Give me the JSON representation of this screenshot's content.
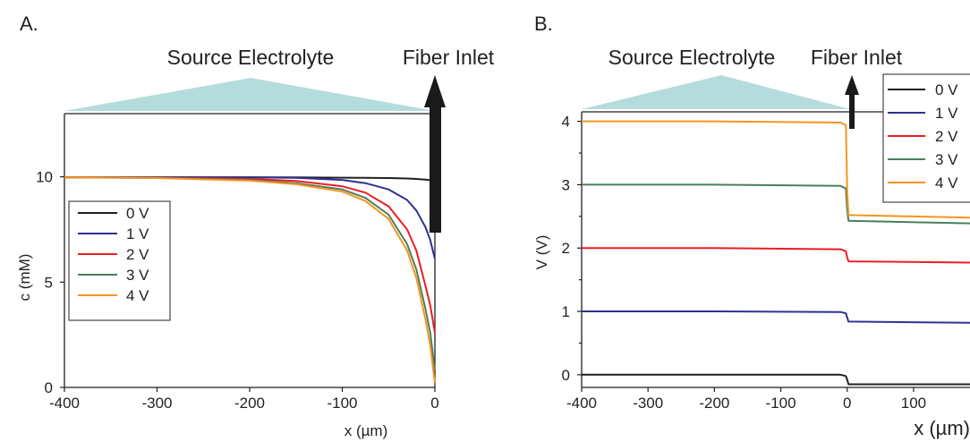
{
  "colors": {
    "s0": "#231f20",
    "s1": "#2e3192",
    "s2": "#ed1c24",
    "s3": "#4a7f5e",
    "s4": "#f7941d",
    "electrolyte": "#b5dcdc",
    "arrow": "#1a1a1a"
  },
  "chart_data": [
    {
      "type": "line",
      "panel_label": "A.",
      "header_left": "Source Electrolyte",
      "header_right": "Fiber Inlet",
      "xlabel": "x (µm)",
      "ylabel": "c (mM)",
      "xlim": [
        -400,
        0
      ],
      "ylim": [
        0,
        13
      ],
      "x_ticks": [
        "-400",
        "-300",
        "-200",
        "-100",
        "0"
      ],
      "y_ticks": [
        "0",
        "5",
        "10"
      ],
      "legend_position": "left",
      "series": [
        {
          "name": "0 V",
          "color_key": "s0",
          "x": [
            -400,
            -300,
            -200,
            -150,
            -100,
            -75,
            -50,
            -30,
            -20,
            -10,
            -5,
            0
          ],
          "y": [
            9.97,
            9.98,
            9.98,
            9.97,
            9.96,
            9.95,
            9.94,
            9.92,
            9.9,
            9.87,
            9.84,
            9.8
          ]
        },
        {
          "name": "1 V",
          "color_key": "s1",
          "x": [
            -400,
            -300,
            -200,
            -150,
            -100,
            -75,
            -50,
            -30,
            -20,
            -10,
            -5,
            0
          ],
          "y": [
            9.97,
            9.98,
            9.97,
            9.95,
            9.85,
            9.7,
            9.4,
            8.9,
            8.4,
            7.6,
            7.0,
            6.1
          ]
        },
        {
          "name": "2 V",
          "color_key": "s2",
          "x": [
            -400,
            -300,
            -200,
            -150,
            -100,
            -75,
            -50,
            -30,
            -20,
            -10,
            -5,
            0
          ],
          "y": [
            9.97,
            9.96,
            9.9,
            9.8,
            9.55,
            9.25,
            8.6,
            7.5,
            6.5,
            4.8,
            3.9,
            2.6
          ]
        },
        {
          "name": "3 V",
          "color_key": "s3",
          "x": [
            -400,
            -300,
            -200,
            -150,
            -100,
            -75,
            -50,
            -30,
            -20,
            -10,
            -5,
            0
          ],
          "y": [
            9.97,
            9.95,
            9.85,
            9.7,
            9.4,
            9.0,
            8.2,
            6.8,
            5.6,
            3.7,
            2.6,
            0.8
          ]
        },
        {
          "name": "4 V",
          "color_key": "s4",
          "x": [
            -400,
            -300,
            -200,
            -150,
            -100,
            -75,
            -50,
            -30,
            -20,
            -10,
            -5,
            0
          ],
          "y": [
            9.97,
            9.94,
            9.82,
            9.65,
            9.3,
            8.85,
            8.0,
            6.5,
            5.2,
            3.2,
            2.0,
            0.2
          ]
        }
      ]
    },
    {
      "type": "line",
      "panel_label": "B.",
      "header_left": "Source Electrolyte",
      "header_right": "Fiber Inlet",
      "xlabel": "x (µm)",
      "ylabel": "V (V)",
      "xlim": [
        -400,
        185
      ],
      "ylim": [
        -0.2,
        4.15
      ],
      "x_ticks": [
        "-400",
        "-300",
        "-200",
        "-100",
        "0",
        "100"
      ],
      "y_ticks": [
        "0",
        "1",
        "2",
        "3",
        "4"
      ],
      "legend_position": "top-right",
      "series": [
        {
          "name": "0 V",
          "color_key": "s0",
          "x": [
            -400,
            -200,
            -10,
            -2,
            0,
            2,
            185
          ],
          "y": [
            0.0,
            0.0,
            0.0,
            -0.02,
            -0.08,
            -0.15,
            -0.15
          ]
        },
        {
          "name": "1 V",
          "color_key": "s1",
          "x": [
            -400,
            -200,
            -10,
            -2,
            0,
            2,
            185
          ],
          "y": [
            1.0,
            1.0,
            0.99,
            0.97,
            0.9,
            0.84,
            0.82
          ]
        },
        {
          "name": "2 V",
          "color_key": "s2",
          "x": [
            -400,
            -200,
            -10,
            -2,
            0,
            2,
            185
          ],
          "y": [
            2.0,
            2.0,
            1.98,
            1.95,
            1.85,
            1.79,
            1.77
          ]
        },
        {
          "name": "3 V",
          "color_key": "s3",
          "x": [
            -400,
            -200,
            -10,
            -2,
            0,
            2,
            185
          ],
          "y": [
            3.0,
            3.0,
            2.98,
            2.94,
            2.6,
            2.43,
            2.39
          ]
        },
        {
          "name": "4 V",
          "color_key": "s4",
          "x": [
            -400,
            -200,
            -10,
            -2,
            0,
            2,
            185
          ],
          "y": [
            4.0,
            4.0,
            3.98,
            3.94,
            2.9,
            2.52,
            2.48
          ]
        }
      ]
    }
  ]
}
